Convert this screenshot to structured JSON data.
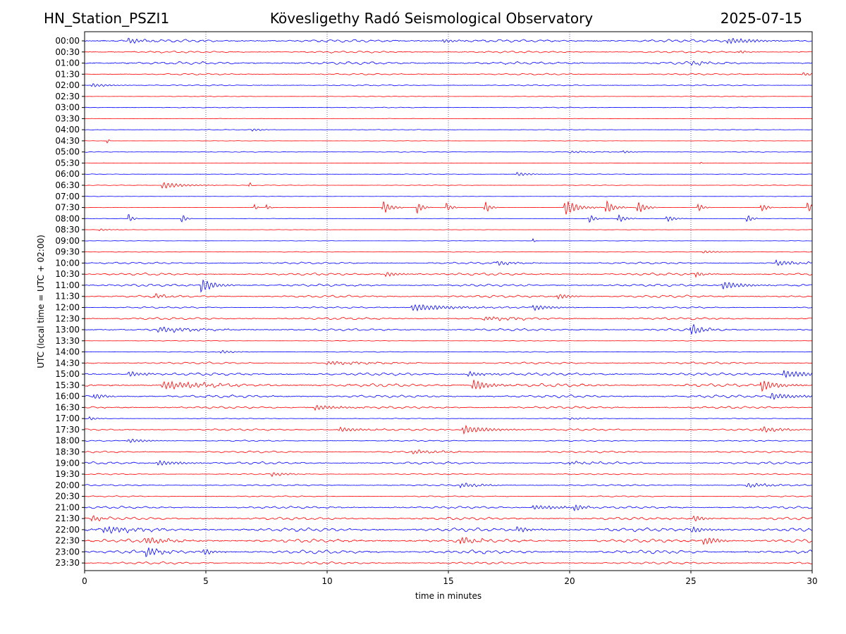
{
  "header": {
    "station": "HN_Station_PSZI1",
    "observatory": "Kövesligethy Radó Seismological Observatory",
    "date": "2025-07-15"
  },
  "chart_data": {
    "type": "line",
    "title": "Kövesligethy Radó Seismological Observatory",
    "xlabel": "time in minutes",
    "ylabel": "UTC (local time = UTC + 02:00)",
    "xlim": [
      0,
      30
    ],
    "x_ticks": [
      0,
      5,
      10,
      15,
      20,
      25,
      30
    ],
    "vertical_gridlines_at": [
      5,
      10,
      15,
      20,
      25
    ],
    "grid": "vertical dotted",
    "series_colors": [
      "#0000ff",
      "#ff0000"
    ],
    "rows": [
      {
        "label": "00:00",
        "amp": 0.35,
        "bursts": [
          {
            "t": 1.8,
            "a": 0.8,
            "d": 0.5
          },
          {
            "t": 14.8,
            "a": 0.7,
            "d": 0.4
          },
          {
            "t": 26.5,
            "a": 0.9,
            "d": 1.0
          }
        ]
      },
      {
        "label": "00:30",
        "amp": 0.25,
        "bursts": [
          {
            "t": 27.0,
            "a": 0.5,
            "d": 0.3
          }
        ]
      },
      {
        "label": "01:00",
        "amp": 0.35,
        "bursts": [
          {
            "t": 25.0,
            "a": 0.6,
            "d": 0.5
          }
        ]
      },
      {
        "label": "01:30",
        "amp": 0.2,
        "bursts": [
          {
            "t": 29.6,
            "a": 0.5,
            "d": 0.4
          }
        ]
      },
      {
        "label": "02:00",
        "amp": 0.15,
        "bursts": [
          {
            "t": 0.3,
            "a": 0.6,
            "d": 0.6
          }
        ]
      },
      {
        "label": "02:30",
        "amp": 0.08,
        "bursts": []
      },
      {
        "label": "03:00",
        "amp": 0.1,
        "bursts": []
      },
      {
        "label": "03:30",
        "amp": 0.05,
        "bursts": []
      },
      {
        "label": "04:00",
        "amp": 0.08,
        "bursts": [
          {
            "t": 6.9,
            "a": 0.4,
            "d": 0.4
          }
        ]
      },
      {
        "label": "04:30",
        "amp": 0.05,
        "bursts": [
          {
            "t": 0.95,
            "a": 1.0,
            "d": 0.05
          }
        ]
      },
      {
        "label": "05:00",
        "amp": 0.1,
        "bursts": [
          {
            "t": 20.0,
            "a": 0.3,
            "d": 0.8
          },
          {
            "t": 22.2,
            "a": 0.4,
            "d": 0.3
          }
        ]
      },
      {
        "label": "05:30",
        "amp": 0.05,
        "bursts": [
          {
            "t": 25.4,
            "a": 0.6,
            "d": 0.05
          }
        ]
      },
      {
        "label": "06:00",
        "amp": 0.08,
        "bursts": [
          {
            "t": 17.8,
            "a": 0.6,
            "d": 0.5
          }
        ]
      },
      {
        "label": "06:30",
        "amp": 0.08,
        "bursts": [
          {
            "t": 3.2,
            "a": 1.0,
            "d": 0.8
          },
          {
            "t": 6.8,
            "a": 1.2,
            "d": 0.05
          }
        ]
      },
      {
        "label": "07:00",
        "amp": 0.05,
        "bursts": []
      },
      {
        "label": "07:30",
        "amp": 0.05,
        "bursts": [
          {
            "t": 7.0,
            "a": 1.0,
            "d": 0.1
          },
          {
            "t": 7.5,
            "a": 1.0,
            "d": 0.1
          },
          {
            "t": 12.3,
            "a": 2.0,
            "d": 0.3
          },
          {
            "t": 13.7,
            "a": 2.0,
            "d": 0.2
          },
          {
            "t": 14.9,
            "a": 1.5,
            "d": 0.2
          },
          {
            "t": 16.5,
            "a": 1.8,
            "d": 0.2
          },
          {
            "t": 19.8,
            "a": 2.4,
            "d": 0.5
          },
          {
            "t": 21.5,
            "a": 2.2,
            "d": 0.3
          },
          {
            "t": 22.8,
            "a": 1.8,
            "d": 0.3
          },
          {
            "t": 25.3,
            "a": 1.2,
            "d": 0.2
          },
          {
            "t": 27.9,
            "a": 1.5,
            "d": 0.2
          },
          {
            "t": 29.8,
            "a": 1.8,
            "d": 0.2
          }
        ]
      },
      {
        "label": "08:00",
        "amp": 0.05,
        "bursts": [
          {
            "t": 1.8,
            "a": 1.5,
            "d": 0.15
          },
          {
            "t": 4.0,
            "a": 1.5,
            "d": 0.15
          },
          {
            "t": 20.8,
            "a": 1.5,
            "d": 0.2
          },
          {
            "t": 22.0,
            "a": 1.2,
            "d": 0.3
          },
          {
            "t": 24.0,
            "a": 1.0,
            "d": 0.3
          },
          {
            "t": 27.3,
            "a": 1.2,
            "d": 0.2
          }
        ]
      },
      {
        "label": "08:30",
        "amp": 0.05,
        "bursts": [
          {
            "t": 0.6,
            "a": 0.3,
            "d": 0.5
          }
        ]
      },
      {
        "label": "09:00",
        "amp": 0.05,
        "bursts": [
          {
            "t": 18.5,
            "a": 0.8,
            "d": 0.05
          }
        ]
      },
      {
        "label": "09:30",
        "amp": 0.08,
        "bursts": [
          {
            "t": 25.5,
            "a": 0.4,
            "d": 0.6
          }
        ]
      },
      {
        "label": "10:00",
        "amp": 0.25,
        "bursts": [
          {
            "t": 17.0,
            "a": 0.7,
            "d": 0.6
          },
          {
            "t": 28.5,
            "a": 0.8,
            "d": 0.8
          }
        ]
      },
      {
        "label": "10:30",
        "amp": 0.3,
        "bursts": [
          {
            "t": 12.4,
            "a": 0.7,
            "d": 0.5
          },
          {
            "t": 25.2,
            "a": 0.8,
            "d": 0.3
          }
        ]
      },
      {
        "label": "11:00",
        "amp": 0.3,
        "bursts": [
          {
            "t": 4.8,
            "a": 2.2,
            "d": 0.5
          },
          {
            "t": 26.3,
            "a": 1.2,
            "d": 0.8
          }
        ]
      },
      {
        "label": "11:30",
        "amp": 0.3,
        "bursts": [
          {
            "t": 2.9,
            "a": 0.8,
            "d": 0.4
          },
          {
            "t": 19.5,
            "a": 0.9,
            "d": 0.5
          }
        ]
      },
      {
        "label": "12:00",
        "amp": 0.2,
        "bursts": [
          {
            "t": 13.5,
            "a": 1.0,
            "d": 1.5
          },
          {
            "t": 18.5,
            "a": 0.8,
            "d": 0.7
          }
        ]
      },
      {
        "label": "12:30",
        "amp": 0.3,
        "bursts": [
          {
            "t": 16.5,
            "a": 0.6,
            "d": 1.0
          }
        ]
      },
      {
        "label": "13:00",
        "amp": 0.3,
        "bursts": [
          {
            "t": 25.0,
            "a": 1.8,
            "d": 0.4
          },
          {
            "t": 3.0,
            "a": 0.7,
            "d": 1.5
          }
        ]
      },
      {
        "label": "13:30",
        "amp": 0.08,
        "bursts": []
      },
      {
        "label": "14:00",
        "amp": 0.1,
        "bursts": [
          {
            "t": 5.6,
            "a": 0.5,
            "d": 0.5
          }
        ]
      },
      {
        "label": "14:30",
        "amp": 0.25,
        "bursts": [
          {
            "t": 10.0,
            "a": 0.5,
            "d": 1.5
          }
        ]
      },
      {
        "label": "15:00",
        "amp": 0.35,
        "bursts": [
          {
            "t": 1.8,
            "a": 0.9,
            "d": 0.6
          },
          {
            "t": 15.8,
            "a": 0.8,
            "d": 0.6
          },
          {
            "t": 28.8,
            "a": 1.0,
            "d": 1.2
          }
        ]
      },
      {
        "label": "15:30",
        "amp": 0.4,
        "bursts": [
          {
            "t": 3.2,
            "a": 1.2,
            "d": 1.5
          },
          {
            "t": 16.0,
            "a": 1.6,
            "d": 0.6
          },
          {
            "t": 27.9,
            "a": 1.8,
            "d": 0.6
          }
        ]
      },
      {
        "label": "16:00",
        "amp": 0.35,
        "bursts": [
          {
            "t": 0.4,
            "a": 1.0,
            "d": 0.4
          },
          {
            "t": 28.3,
            "a": 1.0,
            "d": 1.0
          }
        ]
      },
      {
        "label": "16:30",
        "amp": 0.3,
        "bursts": [
          {
            "t": 9.5,
            "a": 0.7,
            "d": 1.0
          }
        ]
      },
      {
        "label": "17:00",
        "amp": 0.1,
        "bursts": [
          {
            "t": 0.2,
            "a": 0.5,
            "d": 0.3
          },
          {
            "t": 20.0,
            "a": 0.3,
            "d": 0.5
          }
        ]
      },
      {
        "label": "17:30",
        "amp": 0.25,
        "bursts": [
          {
            "t": 10.5,
            "a": 0.7,
            "d": 0.8
          },
          {
            "t": 15.6,
            "a": 1.2,
            "d": 1.0
          },
          {
            "t": 27.9,
            "a": 0.8,
            "d": 0.8
          }
        ]
      },
      {
        "label": "18:00",
        "amp": 0.15,
        "bursts": [
          {
            "t": 1.8,
            "a": 0.6,
            "d": 0.7
          }
        ]
      },
      {
        "label": "18:30",
        "amp": 0.25,
        "bursts": [
          {
            "t": 13.5,
            "a": 0.6,
            "d": 1.0
          }
        ]
      },
      {
        "label": "19:00",
        "amp": 0.3,
        "bursts": [
          {
            "t": 3.0,
            "a": 0.7,
            "d": 1.0
          },
          {
            "t": 20.0,
            "a": 0.5,
            "d": 0.6
          }
        ]
      },
      {
        "label": "19:30",
        "amp": 0.15,
        "bursts": [
          {
            "t": 7.7,
            "a": 0.6,
            "d": 0.6
          }
        ]
      },
      {
        "label": "20:00",
        "amp": 0.2,
        "bursts": [
          {
            "t": 15.5,
            "a": 0.7,
            "d": 0.8
          },
          {
            "t": 27.3,
            "a": 0.6,
            "d": 1.0
          }
        ]
      },
      {
        "label": "20:30",
        "amp": 0.15,
        "bursts": []
      },
      {
        "label": "21:00",
        "amp": 0.3,
        "bursts": [
          {
            "t": 18.5,
            "a": 0.7,
            "d": 1.2
          },
          {
            "t": 20.2,
            "a": 1.2,
            "d": 0.3
          }
        ]
      },
      {
        "label": "21:30",
        "amp": 0.35,
        "bursts": [
          {
            "t": 0.3,
            "a": 0.8,
            "d": 0.4
          },
          {
            "t": 25.1,
            "a": 1.0,
            "d": 0.4
          }
        ]
      },
      {
        "label": "22:00",
        "amp": 0.45,
        "bursts": [
          {
            "t": 0.8,
            "a": 1.0,
            "d": 1.0
          },
          {
            "t": 17.8,
            "a": 0.8,
            "d": 0.6
          },
          {
            "t": 25.0,
            "a": 0.9,
            "d": 0.6
          }
        ]
      },
      {
        "label": "22:30",
        "amp": 0.45,
        "bursts": [
          {
            "t": 2.5,
            "a": 1.0,
            "d": 0.8
          },
          {
            "t": 15.5,
            "a": 1.2,
            "d": 0.5
          },
          {
            "t": 25.5,
            "a": 1.2,
            "d": 0.6
          }
        ]
      },
      {
        "label": "23:00",
        "amp": 0.45,
        "bursts": [
          {
            "t": 2.5,
            "a": 1.5,
            "d": 0.5
          },
          {
            "t": 4.9,
            "a": 1.0,
            "d": 0.4
          }
        ]
      },
      {
        "label": "23:30",
        "amp": 0.3,
        "bursts": []
      }
    ]
  }
}
